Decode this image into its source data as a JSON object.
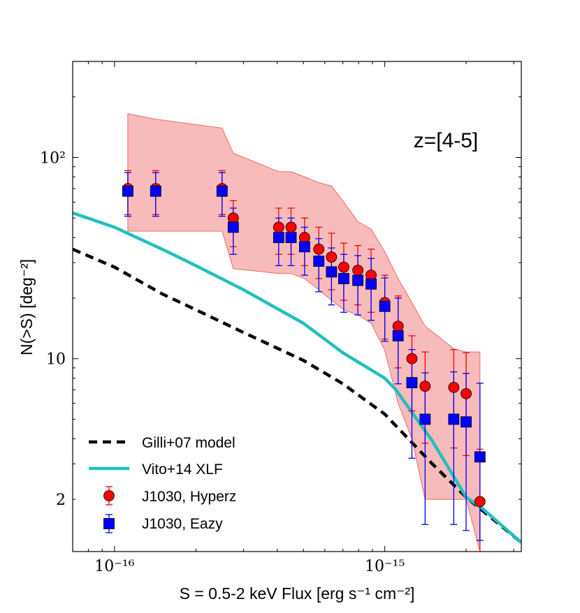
{
  "chart_data": {
    "type": "scatter",
    "title": "",
    "annotation": "z=[4-5]",
    "xlabel": "S = 0.5-2 keV Flux [erg s⁻¹ cm⁻²]",
    "ylabel": "N(>S) [deg⁻²]",
    "x_scale": "log",
    "y_scale": "log",
    "xlim": [
      7e-17,
      3.2e-15
    ],
    "ylim": [
      1.1,
      300
    ],
    "x_ticks": [
      {
        "value": 1e-16,
        "label": "10⁻¹⁶"
      },
      {
        "value": 1e-15,
        "label": "10⁻¹⁵"
      }
    ],
    "y_ticks": [
      {
        "value": 2,
        "label": "2"
      },
      {
        "value": 10,
        "label": "10"
      },
      {
        "value": 100,
        "label": "10²"
      }
    ],
    "legend_position": "bottom-left",
    "series": [
      {
        "name": "Gilli+07 model",
        "kind": "line",
        "style": "dashed",
        "color": "#000000",
        "x": [
          7e-17,
          1e-16,
          1.5e-16,
          2e-16,
          3e-16,
          5e-16,
          7e-16,
          1e-15,
          1.5e-15,
          2e-15,
          3.2e-15
        ],
        "y": [
          35,
          28.5,
          21,
          17.5,
          13.5,
          9.8,
          7.5,
          5.3,
          3.0,
          2.05,
          1.22
        ]
      },
      {
        "name": "Vito+14 XLF",
        "kind": "line",
        "style": "solid",
        "color": "#21bfc1",
        "x": [
          7e-17,
          1e-16,
          1.5e-16,
          2e-16,
          3e-16,
          5e-16,
          7e-16,
          1e-15,
          1.1e-15,
          1.5e-15,
          2e-15,
          2.3e-15,
          3.2e-15
        ],
        "y": [
          53,
          45,
          35,
          29,
          22,
          15,
          10.7,
          8.0,
          7.0,
          3.9,
          2.05,
          1.8,
          1.22
        ]
      },
      {
        "name": "J1030, Hyperz",
        "kind": "points",
        "marker": "circle",
        "color": "#ff0000",
        "x": [
          1.12e-16,
          1.42e-16,
          2.5e-16,
          2.75e-16,
          4.05e-16,
          4.5e-16,
          5.05e-16,
          5.7e-16,
          6.35e-16,
          7.05e-16,
          7.95e-16,
          8.9e-16,
          1e-15,
          1.12e-15,
          1.26e-15,
          1.41e-15,
          1.8e-15,
          2e-15,
          2.25e-15
        ],
        "y": [
          70,
          70,
          70,
          50,
          45,
          45,
          40,
          35,
          32,
          28.5,
          27.5,
          26,
          19,
          14.5,
          10,
          7.3,
          7.2,
          6.7,
          1.95
        ],
        "err_low": [
          18,
          18,
          18,
          14,
          12,
          12,
          11,
          10,
          10,
          9,
          9,
          9,
          6.5,
          5.5,
          4.5,
          3.5,
          3.6,
          3.4,
          1.0
        ],
        "err_high": [
          16,
          16,
          16,
          11,
          11,
          11,
          10,
          10,
          10,
          9,
          9,
          9,
          7,
          6,
          3,
          3.5,
          3.9,
          4.0,
          1.6
        ]
      },
      {
        "name": "J1030, Eazy",
        "kind": "points",
        "marker": "square",
        "color": "#0000ff",
        "x": [
          1.12e-16,
          1.42e-16,
          2.5e-16,
          2.75e-16,
          4.05e-16,
          4.5e-16,
          5.05e-16,
          5.7e-16,
          6.35e-16,
          7.05e-16,
          7.95e-16,
          8.9e-16,
          1e-15,
          1.12e-15,
          1.26e-15,
          1.41e-15,
          1.8e-15,
          2e-15,
          2.25e-15
        ],
        "y": [
          68,
          68,
          68,
          45,
          40,
          40,
          36,
          30.5,
          27,
          25,
          24.5,
          23.5,
          18.2,
          13,
          7.6,
          5.0,
          5.0,
          4.85,
          3.25
        ],
        "err_low": [
          17,
          17,
          17,
          12,
          11,
          11,
          10,
          9,
          8.5,
          8,
          8,
          8,
          6,
          5.5,
          4.4,
          3.5,
          3.5,
          3.45,
          2.0
        ],
        "err_high": [
          16,
          16,
          16,
          11,
          10,
          10,
          9,
          9,
          8.5,
          8,
          8,
          8,
          7,
          7,
          3.5,
          3.5,
          3.6,
          3.6,
          4.3
        ]
      }
    ],
    "band": {
      "name": "uncertainty range",
      "color": "#f48e8e",
      "x": [
        1.12e-16,
        1.42e-16,
        2.5e-16,
        2.75e-16,
        4.05e-16,
        4.5e-16,
        5.05e-16,
        5.7e-16,
        6.35e-16,
        7.05e-16,
        7.95e-16,
        8.9e-16,
        1e-15,
        1.12e-15,
        1.26e-15,
        1.41e-15,
        1.8e-15,
        2e-15,
        2.25e-15
      ],
      "upper": [
        165,
        155,
        140,
        105,
        85,
        85,
        80,
        75,
        72,
        60,
        48,
        44,
        34,
        25,
        19,
        14.5,
        11.2,
        10.8,
        10.8
      ],
      "lower": [
        43,
        43,
        43,
        28,
        26.5,
        26.5,
        25,
        22,
        19.5,
        17.5,
        16.5,
        15,
        11,
        6,
        4,
        2.0,
        2.0,
        2.0,
        1.1
      ]
    }
  }
}
